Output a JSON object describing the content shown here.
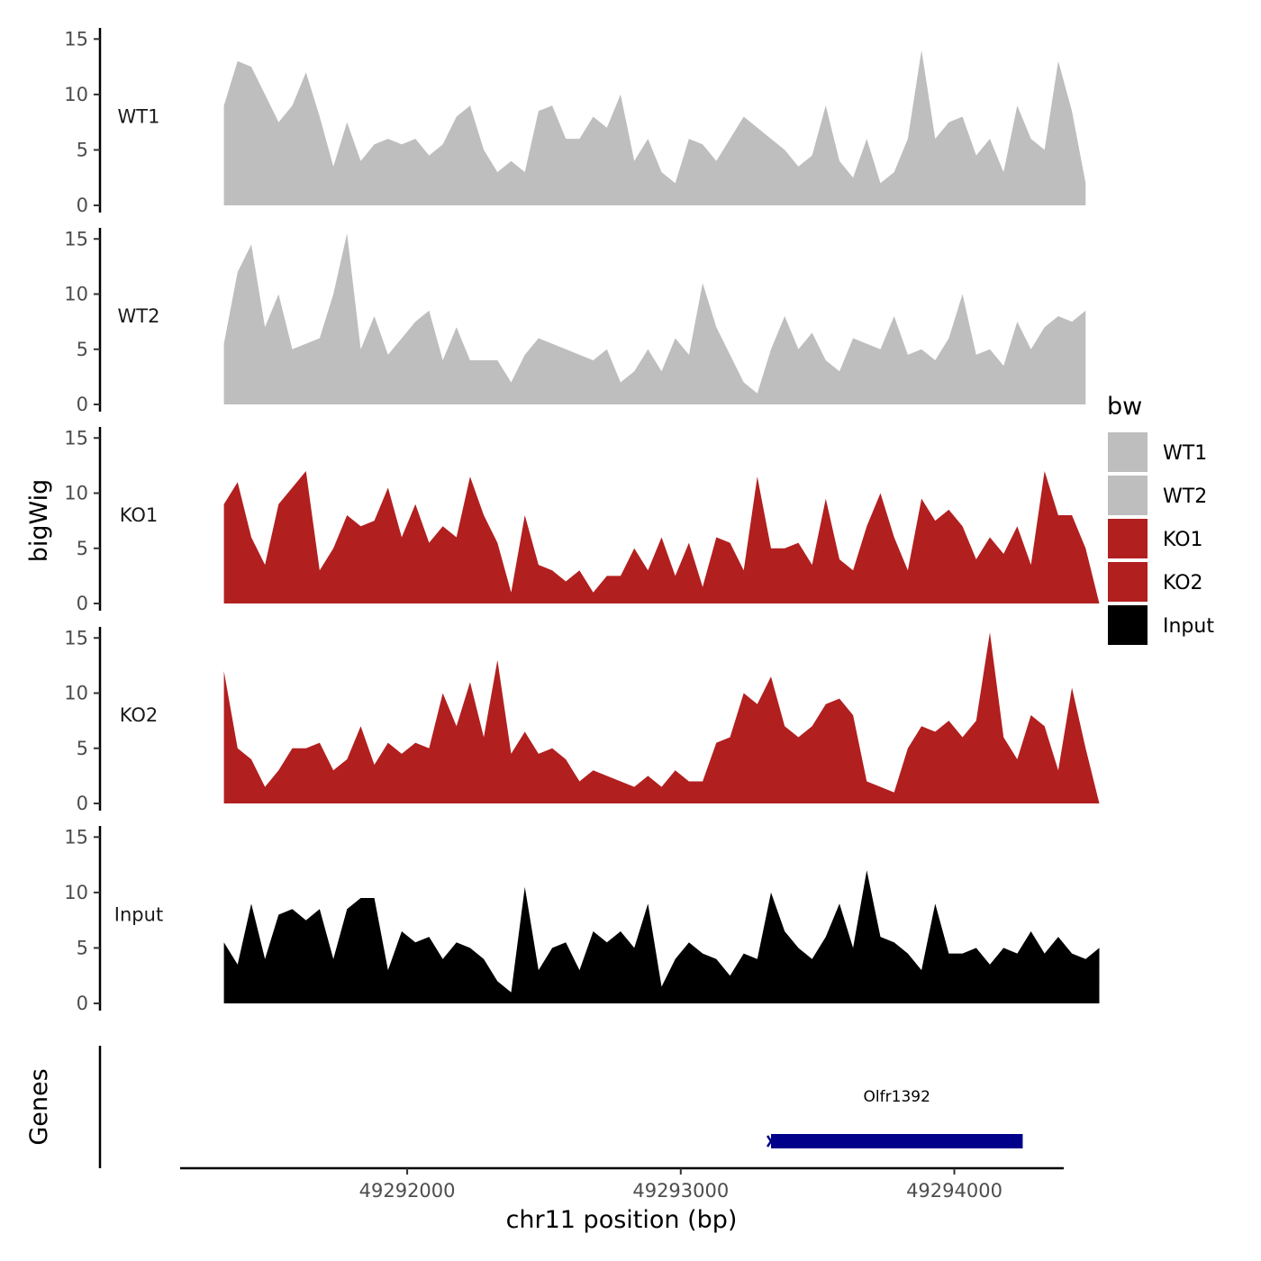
{
  "chart_data": {
    "type": "area",
    "chromosome": "chr11",
    "xlabel": "chr11 position (bp)",
    "ylabel": "bigWig",
    "gene_panel_label": "Genes",
    "xlim": [
      49291170,
      49294400
    ],
    "ylim": [
      0,
      16
    ],
    "x_ticks": [
      49292000,
      49293000,
      49294000
    ],
    "x_tick_labels": [
      "49292000",
      "49293000",
      "49294000"
    ],
    "y_ticks": [
      0,
      5,
      10,
      15
    ],
    "y_tick_labels": [
      "0",
      "5",
      "10",
      "15"
    ],
    "legend": {
      "title": "bw",
      "position": "right",
      "entries": [
        {
          "label": "WT1",
          "color": "#bebebe"
        },
        {
          "label": "WT2",
          "color": "#bebebe"
        },
        {
          "label": "KO1",
          "color": "#b21f1f"
        },
        {
          "label": "KO2",
          "color": "#b21f1f"
        },
        {
          "label": "Input",
          "color": "#000000"
        }
      ]
    },
    "x_start": 49291330,
    "x_step": 50,
    "series": [
      {
        "name": "WT1",
        "color": "#bebebe",
        "values": [
          9,
          13,
          12.5,
          10,
          7.5,
          9,
          12,
          8,
          3.5,
          7.5,
          4,
          5.5,
          6,
          5.5,
          6,
          4.5,
          5.5,
          8,
          9,
          5,
          3,
          4,
          3,
          8.5,
          9,
          6,
          6,
          8,
          7,
          10,
          4,
          6,
          3,
          2,
          6,
          5.5,
          4,
          6,
          8,
          7,
          6,
          5,
          3.5,
          4.5,
          9,
          4,
          2.5,
          6,
          2,
          3,
          6,
          14,
          6,
          7.5,
          8,
          4.5,
          6,
          3,
          9,
          6,
          5,
          13,
          8.5,
          2
        ]
      },
      {
        "name": "WT2",
        "color": "#bebebe",
        "values": [
          5.5,
          12,
          14.5,
          7,
          10,
          5,
          5.5,
          6,
          10,
          15.5,
          5,
          8,
          4.5,
          6,
          7.5,
          8.5,
          4,
          7,
          4,
          4,
          4,
          2,
          4.5,
          6,
          5.5,
          5,
          4.5,
          4,
          5,
          2,
          3,
          5,
          3,
          6,
          4.5,
          11,
          7,
          4.5,
          2,
          1,
          5,
          8,
          5,
          6.5,
          4,
          3,
          6,
          5.5,
          5,
          8,
          4.5,
          5,
          4,
          6,
          10,
          4.5,
          5,
          3.5,
          7.5,
          5,
          7,
          8,
          7.5,
          8.5
        ]
      },
      {
        "name": "KO1",
        "color": "#b21f1f",
        "values": [
          9,
          11,
          6,
          3.5,
          9,
          10.5,
          12,
          3,
          5,
          8,
          7,
          7.5,
          10.5,
          6,
          9,
          5.5,
          7,
          6,
          11.5,
          8,
          5.5,
          1,
          8,
          3.5,
          3,
          2,
          3,
          1,
          2.5,
          2.5,
          5,
          3,
          6,
          2.5,
          5.5,
          1.5,
          6,
          5.5,
          3,
          11.5,
          5,
          5,
          5.5,
          3.5,
          9.5,
          4,
          3,
          7,
          10,
          6,
          3,
          9.5,
          7.5,
          8.5,
          7,
          4,
          6,
          4.5,
          7,
          3.5,
          12,
          8,
          8,
          5,
          0
        ]
      },
      {
        "name": "KO2",
        "color": "#b21f1f",
        "values": [
          12,
          5,
          4,
          1.5,
          3,
          5,
          5,
          5.5,
          3,
          4,
          7,
          3.5,
          5.5,
          4.5,
          5.5,
          5,
          10,
          7,
          11,
          6,
          13,
          4.5,
          6.5,
          4.5,
          5,
          4,
          2,
          3,
          2.5,
          2,
          1.5,
          2.5,
          1.5,
          3,
          2,
          2,
          5.5,
          6,
          10,
          9,
          11.5,
          7,
          6,
          7,
          9,
          9.5,
          8,
          2,
          1.5,
          1,
          5,
          7,
          6.5,
          7.5,
          6,
          7.5,
          15.5,
          6,
          4,
          8,
          7,
          3,
          10.5,
          5,
          0
        ]
      },
      {
        "name": "Input",
        "color": "#000000",
        "values": [
          5.5,
          3.5,
          9,
          4,
          8,
          8.5,
          7.5,
          8.5,
          4,
          8.5,
          9.5,
          9.5,
          3,
          6.5,
          5.5,
          6,
          4,
          5.5,
          5,
          4,
          2,
          1,
          10.5,
          3,
          5,
          5.5,
          3,
          6.5,
          5.5,
          6.5,
          5,
          9,
          1.5,
          4,
          5.5,
          4.5,
          4,
          2.5,
          4.5,
          4,
          10,
          6.5,
          5,
          4,
          6,
          9,
          5,
          12,
          6,
          5.5,
          4.5,
          3,
          9,
          4.5,
          4.5,
          5,
          3.5,
          5,
          4.5,
          6.5,
          4.5,
          6,
          4.5,
          4,
          5
        ]
      }
    ],
    "genes": [
      {
        "name": "Olfr1392",
        "start": 49293330,
        "end": 49294250,
        "strand": "-",
        "color": "#00008b"
      }
    ]
  }
}
